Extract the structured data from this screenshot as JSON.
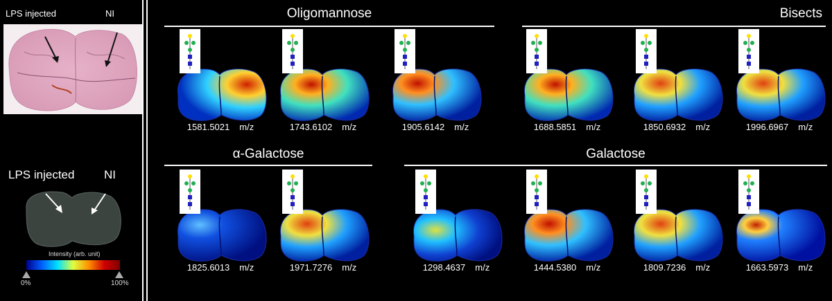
{
  "left": {
    "he_label_left": "LPS injected",
    "he_label_right": "NI",
    "msi_label_left": "LPS injected",
    "msi_label_right": "NI",
    "scale_title": "Intensity (arb. unit)",
    "scale_min": "0%",
    "scale_max": "100%"
  },
  "groups": [
    {
      "title": "Oligomannose"
    },
    {
      "title": "Bisects"
    },
    {
      "title": "α-Galactose"
    },
    {
      "title": "Galactose"
    }
  ],
  "tiles": [
    {
      "mz": "1581.5021",
      "unit": "m/z",
      "intensity": "high-right"
    },
    {
      "mz": "1743.6102",
      "unit": "m/z",
      "intensity": "high-both"
    },
    {
      "mz": "1905.6142",
      "unit": "m/z",
      "intensity": "high-left"
    },
    {
      "mz": "1688.5851",
      "unit": "m/z",
      "intensity": "high-both"
    },
    {
      "mz": "1850.6932",
      "unit": "m/z",
      "intensity": "mid-left"
    },
    {
      "mz": "1996.6967",
      "unit": "m/z",
      "intensity": "mid-left"
    },
    {
      "mz": "1825.6013",
      "unit": "m/z",
      "intensity": "low"
    },
    {
      "mz": "1971.7276",
      "unit": "m/z",
      "intensity": "mid-left"
    },
    {
      "mz": "1298.4637",
      "unit": "m/z",
      "intensity": "low-left"
    },
    {
      "mz": "1444.5380",
      "unit": "m/z",
      "intensity": "high-left"
    },
    {
      "mz": "1809.7236",
      "unit": "m/z",
      "intensity": "mid-left"
    },
    {
      "mz": "1663.5973",
      "unit": "m/z",
      "intensity": "low-spot"
    }
  ],
  "colors": {
    "background": "#000000",
    "scale_stops": [
      "#00008f",
      "#0060ff",
      "#00e0ff",
      "#e0ff40",
      "#ff9000",
      "#d00000",
      "#800000"
    ]
  }
}
